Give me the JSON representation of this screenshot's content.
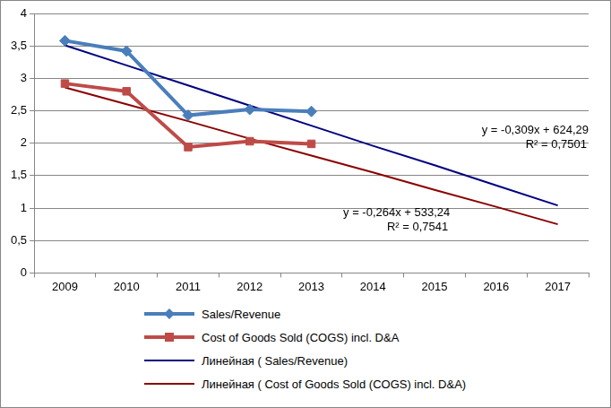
{
  "chart_data": {
    "type": "line",
    "categories": [
      "2009",
      "2010",
      "2011",
      "2012",
      "2013",
      "2014",
      "2015",
      "2016",
      "2017"
    ],
    "ylim": [
      0,
      4
    ],
    "yticks": [
      0,
      {
        "value": 0.5,
        "label": "0,5"
      },
      1,
      {
        "value": 1.5,
        "label": "1,5"
      },
      2,
      {
        "value": 2.5,
        "label": "2,5"
      },
      3,
      {
        "value": 3.5,
        "label": "3,5"
      },
      4
    ],
    "grid": true,
    "legend": "bottom",
    "series": [
      {
        "name": "Sales/Revenue",
        "color": "#4a7ebb",
        "marker": "diamond",
        "line_style": "solid",
        "values": [
          3.58,
          3.42,
          2.43,
          2.52,
          2.49,
          null,
          null,
          null,
          null
        ]
      },
      {
        "name": "Cost of Goods Sold (COGS) incl. D&A",
        "color": "#be4b48",
        "marker": "square",
        "line_style": "solid",
        "values": [
          2.92,
          2.8,
          1.94,
          2.03,
          1.99,
          null,
          null,
          null,
          null
        ]
      },
      {
        "name": "Линейная ( Sales/Revenue)",
        "color": "#000080",
        "marker": "none",
        "line_style": "solid",
        "values": [
          3.51,
          3.2,
          2.89,
          2.58,
          2.27,
          1.96,
          1.66,
          1.35,
          1.04
        ],
        "annotation": [
          "y = -0,309x + 624,29",
          "R² = 0,7501"
        ]
      },
      {
        "name": "Линейная ( Cost of Goods Sold (COGS) incl. D&A)",
        "color": "#8b0000",
        "marker": "none",
        "line_style": "solid",
        "values": [
          2.86,
          2.6,
          2.34,
          2.07,
          1.81,
          1.55,
          1.28,
          1.02,
          0.75
        ],
        "annotation": [
          "y = -0,264x + 533,24",
          "R² = 0,7541"
        ]
      }
    ]
  }
}
